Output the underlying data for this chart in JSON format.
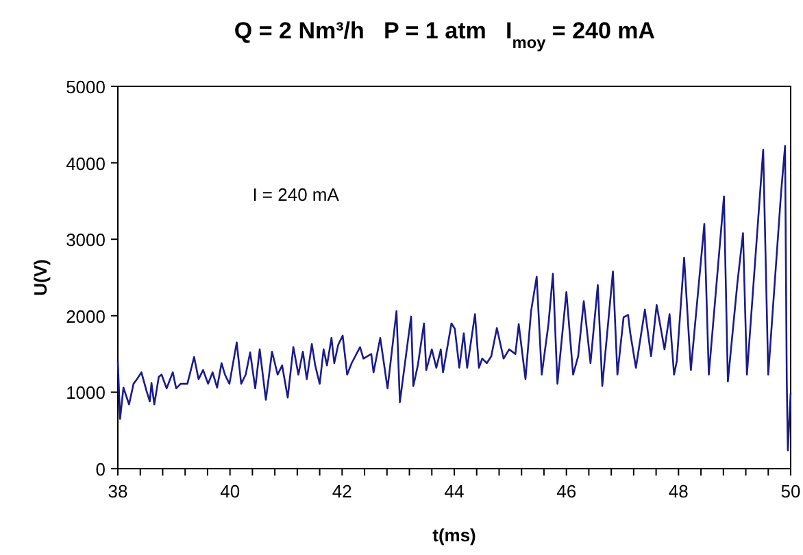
{
  "chart_data": {
    "type": "line",
    "title": "Q = 2 Nm³/h   P = 1 atm   I$_{moy}$ = 240 mA",
    "xlabel": "t(ms)",
    "ylabel": "U(V)",
    "annotations": [
      "I = 240 mA"
    ],
    "xlim": [
      38,
      50
    ],
    "ylim": [
      0,
      5000
    ],
    "xticks": [
      38,
      {
        "value": 38.4,
        "label": null
      },
      {
        "value": 38.8,
        "label": null
      },
      {
        "value": 39.2,
        "label": null
      },
      {
        "value": 39.6,
        "label": null
      },
      40,
      {
        "value": 40.4,
        "label": null
      },
      {
        "value": 40.8,
        "label": null
      },
      {
        "value": 41.2,
        "label": null
      },
      {
        "value": 41.6,
        "label": null
      },
      42,
      {
        "value": 42.4,
        "label": null
      },
      {
        "value": 42.8,
        "label": null
      },
      {
        "value": 43.2,
        "label": null
      },
      {
        "value": 43.6,
        "label": null
      },
      44,
      {
        "value": 44.4,
        "label": null
      },
      {
        "value": 44.8,
        "label": null
      },
      {
        "value": 45.2,
        "label": null
      },
      {
        "value": 45.6,
        "label": null
      },
      46,
      {
        "value": 46.4,
        "label": null
      },
      {
        "value": 46.8,
        "label": null
      },
      {
        "value": 47.2,
        "label": null
      },
      {
        "value": 47.6,
        "label": null
      },
      48,
      {
        "value": 48.4,
        "label": null
      },
      {
        "value": 48.8,
        "label": null
      },
      {
        "value": 49.2,
        "label": null
      },
      {
        "value": 49.6,
        "label": null
      },
      50
    ],
    "yticks": [
      0,
      1000,
      2000,
      3000,
      4000,
      5000
    ],
    "grid": false,
    "marker": "none",
    "line_style": "solid",
    "series": [
      {
        "color": "#1a1a8c",
        "x": [
          38.0,
          38.04,
          38.1,
          38.2,
          38.28,
          38.34,
          38.42,
          38.51,
          38.57,
          38.6,
          38.65,
          38.73,
          38.78,
          38.87,
          38.98,
          39.04,
          39.12,
          39.24,
          39.36,
          39.44,
          39.52,
          39.61,
          39.69,
          39.77,
          39.85,
          39.91,
          39.99,
          40.12,
          40.2,
          40.28,
          40.36,
          40.45,
          40.53,
          40.64,
          40.75,
          40.85,
          40.93,
          41.03,
          41.13,
          41.22,
          41.3,
          41.37,
          41.46,
          41.52,
          41.6,
          41.67,
          41.73,
          41.81,
          41.86,
          41.93,
          42.01,
          42.09,
          42.17,
          42.32,
          42.38,
          42.52,
          42.56,
          42.68,
          42.81,
          42.97,
          43.03,
          43.23,
          43.27,
          43.35,
          43.46,
          43.5,
          43.6,
          43.68,
          43.76,
          43.8,
          43.95,
          44.01,
          44.09,
          44.17,
          44.23,
          44.37,
          44.44,
          44.5,
          44.58,
          44.66,
          44.76,
          44.88,
          44.98,
          45.09,
          45.15,
          45.27,
          45.37,
          45.47,
          45.56,
          45.68,
          45.76,
          45.84,
          46.0,
          46.12,
          46.21,
          46.31,
          46.43,
          46.56,
          46.64,
          46.83,
          46.91,
          47.02,
          47.1,
          47.14,
          47.24,
          47.4,
          47.51,
          47.61,
          47.75,
          47.84,
          47.92,
          47.97,
          48.1,
          48.22,
          48.46,
          48.54,
          48.81,
          48.88,
          49.05,
          49.15,
          49.22,
          49.51,
          49.6,
          49.83,
          49.9,
          49.93,
          49.95,
          50.0
        ],
        "values": [
          1400,
          650,
          1060,
          840,
          1110,
          1170,
          1260,
          1020,
          880,
          1120,
          840,
          1200,
          1230,
          1050,
          1260,
          1050,
          1110,
          1110,
          1460,
          1170,
          1290,
          1110,
          1260,
          1060,
          1380,
          1230,
          1110,
          1650,
          1110,
          1230,
          1520,
          1050,
          1560,
          900,
          1530,
          1230,
          1350,
          930,
          1590,
          1230,
          1530,
          1170,
          1630,
          1350,
          1110,
          1560,
          1350,
          1710,
          1380,
          1620,
          1740,
          1230,
          1380,
          1590,
          1440,
          1500,
          1260,
          1710,
          1050,
          2060,
          870,
          1990,
          1080,
          1350,
          1900,
          1290,
          1560,
          1320,
          1560,
          1260,
          1900,
          1830,
          1320,
          1770,
          1320,
          2020,
          1320,
          1440,
          1380,
          1470,
          1840,
          1440,
          1560,
          1500,
          1890,
          1170,
          2060,
          2510,
          1230,
          1890,
          2550,
          1110,
          2310,
          1230,
          1470,
          2190,
          1380,
          2400,
          1080,
          2580,
          1230,
          1980,
          2010,
          1770,
          1320,
          2080,
          1470,
          2140,
          1560,
          2020,
          1230,
          1410,
          2760,
          1290,
          3200,
          1230,
          3560,
          1140,
          2430,
          3080,
          1230,
          4170,
          1230,
          3620,
          4220,
          1170,
          240,
          990
        ]
      }
    ]
  }
}
